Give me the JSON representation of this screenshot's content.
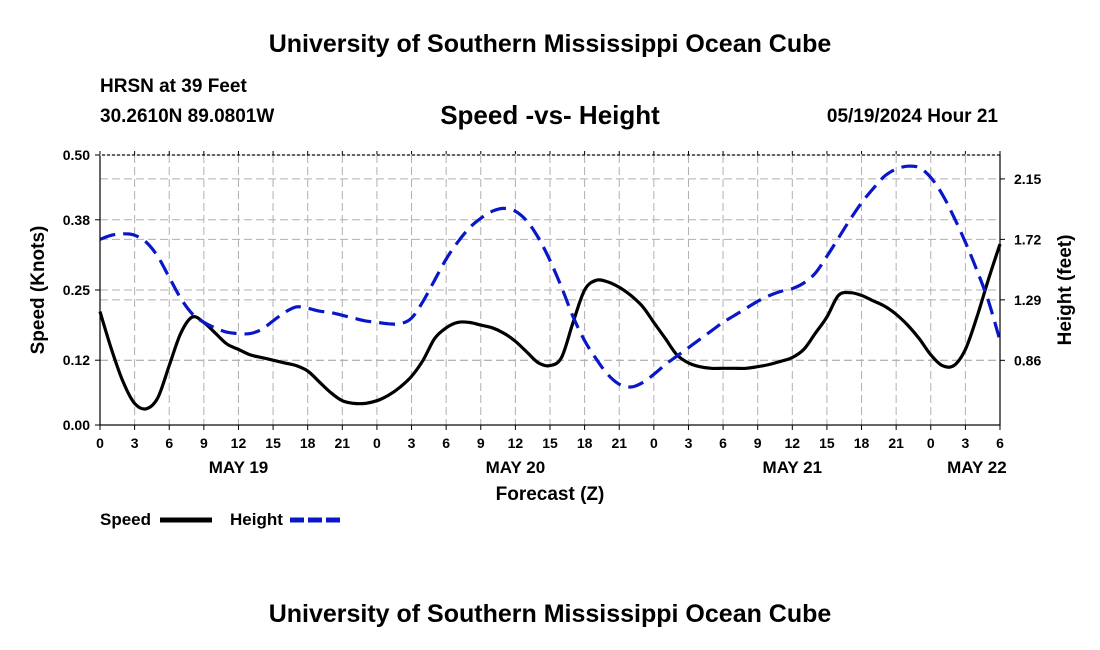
{
  "header": {
    "title": "University of Southern Mississippi Ocean Cube",
    "station": "HRSN at 39 Feet",
    "coords": "30.2610N  89.0801W",
    "chart_title": "Speed -vs- Height",
    "run_time": "05/19/2024 Hour 21"
  },
  "footer": {
    "title": "University of Southern Mississippi Ocean Cube"
  },
  "colors": {
    "speed": "#000000",
    "height": "#0a17c8",
    "grid": "#b0b0b0"
  },
  "chart_data": {
    "type": "line",
    "title": "Speed -vs- Height",
    "xlabel": "Forecast (Z)",
    "ylabel": "Speed (Knots)",
    "ylabel_right": "Height (feet)",
    "x_range_hours": [
      0,
      78
    ],
    "x_ticks": [
      {
        "h": 0,
        "label": "0"
      },
      {
        "h": 3,
        "label": "3"
      },
      {
        "h": 6,
        "label": "6"
      },
      {
        "h": 9,
        "label": "9"
      },
      {
        "h": 12,
        "label": "12"
      },
      {
        "h": 15,
        "label": "15"
      },
      {
        "h": 18,
        "label": "18"
      },
      {
        "h": 21,
        "label": "21"
      },
      {
        "h": 24,
        "label": "0"
      },
      {
        "h": 27,
        "label": "3"
      },
      {
        "h": 30,
        "label": "6"
      },
      {
        "h": 33,
        "label": "9"
      },
      {
        "h": 36,
        "label": "12"
      },
      {
        "h": 39,
        "label": "15"
      },
      {
        "h": 42,
        "label": "18"
      },
      {
        "h": 45,
        "label": "21"
      },
      {
        "h": 48,
        "label": "0"
      },
      {
        "h": 51,
        "label": "3"
      },
      {
        "h": 54,
        "label": "6"
      },
      {
        "h": 57,
        "label": "9"
      },
      {
        "h": 60,
        "label": "12"
      },
      {
        "h": 63,
        "label": "15"
      },
      {
        "h": 66,
        "label": "18"
      },
      {
        "h": 69,
        "label": "21"
      },
      {
        "h": 72,
        "label": "0"
      },
      {
        "h": 75,
        "label": "3"
      },
      {
        "h": 78,
        "label": "6"
      }
    ],
    "date_labels": [
      {
        "h": 12,
        "label": "MAY 19"
      },
      {
        "h": 36,
        "label": "MAY 20"
      },
      {
        "h": 60,
        "label": "MAY 21"
      },
      {
        "h": 76,
        "label": "MAY 22"
      }
    ],
    "y_left": {
      "range": [
        0,
        0.5
      ],
      "ticks": [
        "0.00",
        "0.12",
        "0.25",
        "0.38",
        "0.50"
      ]
    },
    "y_right": {
      "range": [
        0.4,
        2.32
      ],
      "ticks": [
        "0.86",
        "1.29",
        "1.72",
        "2.15"
      ]
    },
    "series": [
      {
        "name": "Speed",
        "axis": "left",
        "style": "solid",
        "points": [
          [
            0,
            0.21
          ],
          [
            1,
            0.14
          ],
          [
            2,
            0.08
          ],
          [
            3,
            0.04
          ],
          [
            4,
            0.03
          ],
          [
            5,
            0.05
          ],
          [
            6,
            0.11
          ],
          [
            7,
            0.17
          ],
          [
            8,
            0.2
          ],
          [
            9,
            0.19
          ],
          [
            10,
            0.17
          ],
          [
            11,
            0.15
          ],
          [
            12,
            0.14
          ],
          [
            13,
            0.13
          ],
          [
            14,
            0.125
          ],
          [
            15,
            0.12
          ],
          [
            16,
            0.115
          ],
          [
            17,
            0.11
          ],
          [
            18,
            0.1
          ],
          [
            19,
            0.08
          ],
          [
            20,
            0.06
          ],
          [
            21,
            0.045
          ],
          [
            22,
            0.04
          ],
          [
            23,
            0.04
          ],
          [
            24,
            0.045
          ],
          [
            25,
            0.055
          ],
          [
            26,
            0.07
          ],
          [
            27,
            0.09
          ],
          [
            28,
            0.12
          ],
          [
            29,
            0.16
          ],
          [
            30,
            0.18
          ],
          [
            31,
            0.19
          ],
          [
            32,
            0.19
          ],
          [
            33,
            0.185
          ],
          [
            34,
            0.18
          ],
          [
            35,
            0.17
          ],
          [
            36,
            0.155
          ],
          [
            37,
            0.135
          ],
          [
            38,
            0.115
          ],
          [
            39,
            0.11
          ],
          [
            40,
            0.125
          ],
          [
            41,
            0.19
          ],
          [
            42,
            0.25
          ],
          [
            43,
            0.268
          ],
          [
            44,
            0.265
          ],
          [
            45,
            0.255
          ],
          [
            46,
            0.24
          ],
          [
            47,
            0.22
          ],
          [
            48,
            0.19
          ],
          [
            49,
            0.16
          ],
          [
            50,
            0.13
          ],
          [
            51,
            0.115
          ],
          [
            52,
            0.108
          ],
          [
            53,
            0.105
          ],
          [
            54,
            0.105
          ],
          [
            55,
            0.105
          ],
          [
            56,
            0.105
          ],
          [
            57,
            0.108
          ],
          [
            58,
            0.112
          ],
          [
            59,
            0.118
          ],
          [
            60,
            0.125
          ],
          [
            61,
            0.14
          ],
          [
            62,
            0.17
          ],
          [
            63,
            0.2
          ],
          [
            64,
            0.24
          ],
          [
            65,
            0.245
          ],
          [
            66,
            0.24
          ],
          [
            67,
            0.23
          ],
          [
            68,
            0.22
          ],
          [
            69,
            0.205
          ],
          [
            70,
            0.185
          ],
          [
            71,
            0.16
          ],
          [
            72,
            0.13
          ],
          [
            73,
            0.11
          ],
          [
            74,
            0.11
          ],
          [
            75,
            0.14
          ],
          [
            76,
            0.2
          ],
          [
            77,
            0.27
          ],
          [
            78,
            0.335
          ]
        ]
      },
      {
        "name": "Height",
        "axis": "right",
        "style": "dashed",
        "points": [
          [
            0,
            1.72
          ],
          [
            1,
            1.75
          ],
          [
            2,
            1.76
          ],
          [
            3,
            1.75
          ],
          [
            4,
            1.7
          ],
          [
            5,
            1.6
          ],
          [
            6,
            1.45
          ],
          [
            7,
            1.3
          ],
          [
            8,
            1.19
          ],
          [
            9,
            1.13
          ],
          [
            10,
            1.09
          ],
          [
            11,
            1.06
          ],
          [
            12,
            1.05
          ],
          [
            13,
            1.05
          ],
          [
            14,
            1.08
          ],
          [
            15,
            1.14
          ],
          [
            16,
            1.2
          ],
          [
            17,
            1.24
          ],
          [
            18,
            1.23
          ],
          [
            19,
            1.21
          ],
          [
            20,
            1.2
          ],
          [
            21,
            1.18
          ],
          [
            22,
            1.16
          ],
          [
            23,
            1.14
          ],
          [
            24,
            1.13
          ],
          [
            25,
            1.12
          ],
          [
            26,
            1.12
          ],
          [
            27,
            1.16
          ],
          [
            28,
            1.28
          ],
          [
            29,
            1.43
          ],
          [
            30,
            1.58
          ],
          [
            31,
            1.7
          ],
          [
            32,
            1.8
          ],
          [
            33,
            1.87
          ],
          [
            34,
            1.92
          ],
          [
            35,
            1.94
          ],
          [
            36,
            1.92
          ],
          [
            37,
            1.85
          ],
          [
            38,
            1.73
          ],
          [
            39,
            1.57
          ],
          [
            40,
            1.38
          ],
          [
            41,
            1.17
          ],
          [
            42,
            1.0
          ],
          [
            43,
            0.87
          ],
          [
            44,
            0.76
          ],
          [
            45,
            0.69
          ],
          [
            46,
            0.67
          ],
          [
            47,
            0.7
          ],
          [
            48,
            0.76
          ],
          [
            49,
            0.83
          ],
          [
            50,
            0.89
          ],
          [
            51,
            0.95
          ],
          [
            52,
            1.01
          ],
          [
            53,
            1.07
          ],
          [
            54,
            1.13
          ],
          [
            55,
            1.18
          ],
          [
            56,
            1.23
          ],
          [
            57,
            1.28
          ],
          [
            58,
            1.32
          ],
          [
            59,
            1.35
          ],
          [
            60,
            1.37
          ],
          [
            61,
            1.41
          ],
          [
            62,
            1.48
          ],
          [
            63,
            1.6
          ],
          [
            64,
            1.73
          ],
          [
            65,
            1.86
          ],
          [
            66,
            1.98
          ],
          [
            67,
            2.08
          ],
          [
            68,
            2.17
          ],
          [
            69,
            2.22
          ],
          [
            70,
            2.24
          ],
          [
            71,
            2.23
          ],
          [
            72,
            2.16
          ],
          [
            73,
            2.04
          ],
          [
            74,
            1.88
          ],
          [
            75,
            1.7
          ],
          [
            76,
            1.5
          ],
          [
            77,
            1.28
          ],
          [
            78,
            1.0
          ]
        ]
      }
    ],
    "legend": {
      "placement": "bottom-left",
      "entries": [
        {
          "label": "Speed",
          "series": "Speed"
        },
        {
          "label": "Height",
          "series": "Height"
        }
      ]
    }
  }
}
